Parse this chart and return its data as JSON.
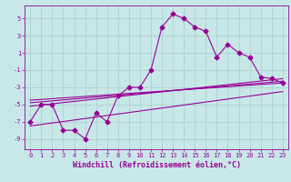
{
  "xlabel": "Windchill (Refroidissement éolien,°C)",
  "bg_color": "#c8e8e8",
  "line_color": "#990099",
  "grid_color": "#aacccc",
  "xlim": [
    -0.5,
    23.5
  ],
  "ylim": [
    -10.2,
    6.5
  ],
  "xticks": [
    0,
    1,
    2,
    3,
    4,
    5,
    6,
    7,
    8,
    9,
    10,
    11,
    12,
    13,
    14,
    15,
    16,
    17,
    18,
    19,
    20,
    21,
    22,
    23
  ],
  "yticks": [
    -9,
    -7,
    -5,
    -3,
    -1,
    1,
    3,
    5
  ],
  "line1_x": [
    0,
    1,
    2,
    3,
    4,
    5,
    6,
    7,
    8,
    9,
    10,
    11,
    12,
    13,
    14,
    15,
    16,
    17,
    18,
    19,
    20,
    21,
    22,
    23
  ],
  "line1_y": [
    -7,
    -5,
    -5,
    -8,
    -8,
    -9,
    -6,
    -7,
    -4,
    -3,
    -3,
    -1,
    4,
    5.5,
    5,
    4,
    3.5,
    0.5,
    2,
    1,
    0.5,
    -1.8,
    -2,
    -2.5
  ],
  "line2_x": [
    0,
    23
  ],
  "line2_y": [
    -4.5,
    -2.5
  ],
  "line3_x": [
    0,
    23
  ],
  "line3_y": [
    -4.8,
    -2.3
  ],
  "line4_x": [
    0,
    23
  ],
  "line4_y": [
    -5.2,
    -2.0
  ],
  "line5_x": [
    0,
    23
  ],
  "line5_y": [
    -7.5,
    -3.5
  ],
  "marker": "D",
  "markersize": 2.5,
  "linewidth": 0.8,
  "tick_fontsize": 5.0,
  "xlabel_fontsize": 6.0
}
